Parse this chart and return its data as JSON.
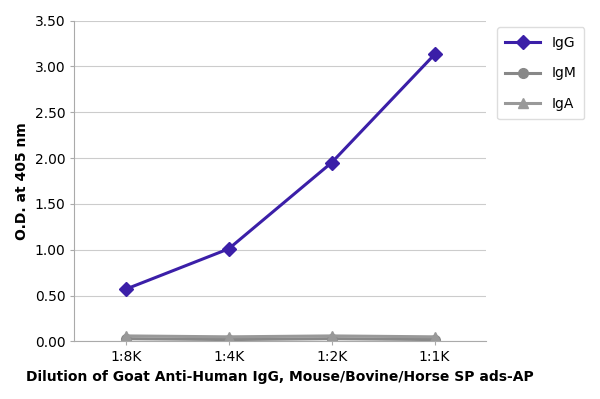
{
  "x_labels": [
    "1:8K",
    "1:4K",
    "1:2K",
    "1:1K"
  ],
  "x_positions": [
    0,
    1,
    2,
    3
  ],
  "IgG_values": [
    0.57,
    1.01,
    1.95,
    3.13
  ],
  "IgM_values": [
    0.03,
    0.02,
    0.03,
    0.02
  ],
  "IgA_values": [
    0.06,
    0.05,
    0.06,
    0.05
  ],
  "IgG_color": "#3b1fa8",
  "IgM_color": "#888888",
  "IgA_color": "#999999",
  "ylabel": "O.D. at 405 nm",
  "xlabel": "Dilution of Goat Anti-Human IgG, Mouse/Bovine/Horse SP ads-AP",
  "ylim": [
    0.0,
    3.5
  ],
  "yticks": [
    0.0,
    0.5,
    1.0,
    1.5,
    2.0,
    2.5,
    3.0,
    3.5
  ],
  "ytick_labels": [
    "0.00",
    "0.50",
    "1.00",
    "1.50",
    "2.00",
    "2.50",
    "3.00",
    "3.50"
  ],
  "legend_labels": [
    "IgG",
    "IgM",
    "IgA"
  ],
  "background_color": "#ffffff",
  "grid_color": "#cccccc",
  "IgG_marker": "D",
  "IgM_marker": "o",
  "IgA_marker": "^",
  "linewidth": 2.2,
  "markersize": 7
}
